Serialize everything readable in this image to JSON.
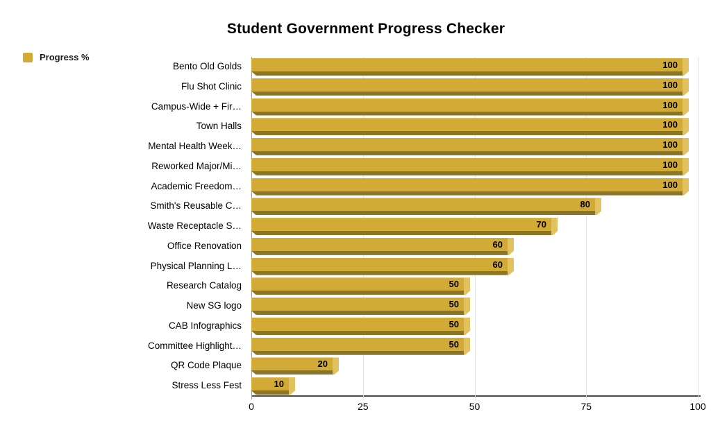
{
  "title": "Student Government Progress Checker",
  "legend": {
    "label": "Progress %",
    "swatch_color": "#D2AB37"
  },
  "colors": {
    "bar_face": "#D2AB37",
    "bar_cap": "#E2C25E",
    "bar_bevel": "#8A7626",
    "gridline": "#E3E3E3",
    "zero_line": "#9E9E9E",
    "axis_line": "#4A4A4A",
    "text": "#000000"
  },
  "chart_data": {
    "type": "bar",
    "orientation": "horizontal",
    "title": "Student Government Progress Checker",
    "series_name": "Progress %",
    "categories": [
      "Bento Old Golds",
      "Flu Shot Clinic",
      "Campus-Wide + Fir…",
      "Town Halls",
      "Mental Health Week…",
      "Reworked Major/Mi…",
      "Academic Freedom…",
      "Smith's Reusable C…",
      "Waste Receptacle S…",
      "Office Renovation",
      "Physical Planning L…",
      "Research Catalog",
      "New SG logo",
      "CAB Infographics",
      "Committee Highlight…",
      "QR Code Plaque",
      "Stress Less Fest"
    ],
    "values": [
      100,
      100,
      100,
      100,
      100,
      100,
      100,
      80,
      70,
      60,
      60,
      50,
      50,
      50,
      50,
      20,
      10
    ],
    "x_ticks": [
      "0",
      "25",
      "50",
      "75",
      "100"
    ],
    "x_tick_values": [
      0,
      25,
      50,
      75,
      100
    ],
    "xlim": [
      0,
      100
    ],
    "grid": true,
    "legend_position": "top-left",
    "data_labels": "inside-end"
  }
}
